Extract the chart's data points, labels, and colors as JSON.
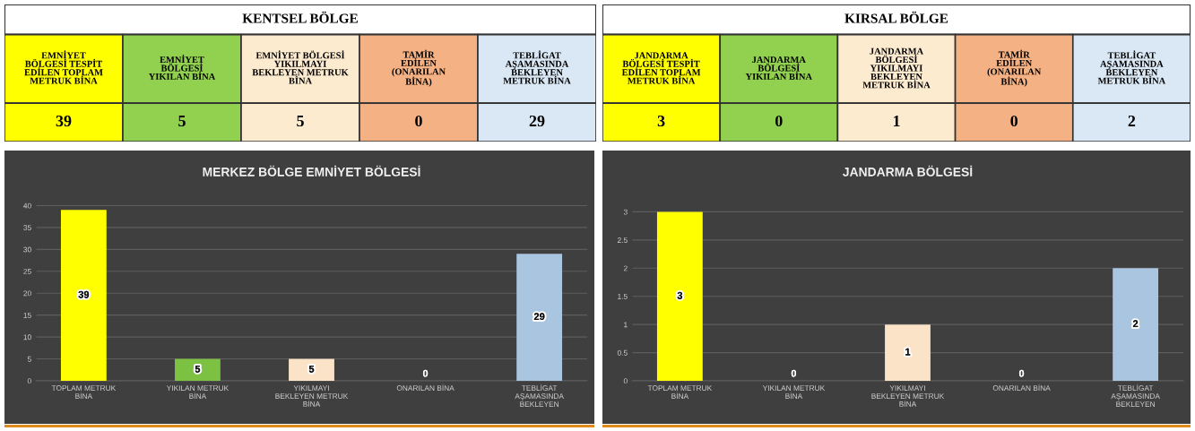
{
  "chart_data": [
    {
      "type": "other",
      "title": "KENTSEL BÖLGE",
      "categories": [
        "EMNİYET\nBÖLGESİ TESPİT\nEDİLEN TOPLAM\nMETRUK BİNA",
        "EMNİYET\nBÖLGESİ\nYIKILAN BİNA",
        "EMNİYET BÖLGESİ\nYIKILMAYI\nBEKLEYEN METRUK\nBİNA",
        "TAMİR\nEDİLEN\n(ONARILAN\nBİNA)",
        "TEBLİGAT\nAŞAMASINDA\nBEKLEYEN\nMETRUK BİNA"
      ],
      "values": [
        39,
        5,
        5,
        0,
        29
      ],
      "colors": [
        "#ffff00",
        "#92d050",
        "#fdebd0",
        "#f4b183",
        "#dae8f5"
      ],
      "data_labels": true
    },
    {
      "type": "other",
      "title": "KIRSAL BÖLGE",
      "categories": [
        "JANDARMA\nBÖLGESİ TESPİT\nEDİLEN TOPLAM\nMETRUK BİNA",
        "JANDARMA\nBÖLGESİ\nYIKILAN BİNA",
        "JANDARMA\nBÖLGESİ\nYIKILMAYI\nBEKLEYEN\nMETRUK BİNA",
        "TAMİR\nEDİLEN\n(ONARILAN\nBİNA)",
        "TEBLİGAT\nAŞAMASINDA\nBEKLEYEN\nMETRUK BİNA"
      ],
      "values": [
        3,
        0,
        1,
        0,
        2
      ],
      "colors": [
        "#ffff00",
        "#92d050",
        "#fdebd0",
        "#f4b183",
        "#dae8f5"
      ],
      "data_labels": true
    },
    {
      "type": "bar",
      "title": "MERKEZ BÖLGE EMNİYET BÖLGESİ",
      "categories": [
        "TOPLAM METRUK\nBİNA",
        "YIKILAN METRUK\nBİNA",
        "YIKILMAYI\nBEKLEYEN METRUK\nBİNA",
        "ONARILAN BİNA",
        "TEBLİGAT\nAŞAMASINDA\nBEKLEYEN"
      ],
      "values": [
        39,
        5,
        5,
        0,
        29
      ],
      "colors": [
        "#ffff00",
        "#7cc142",
        "#fbe3c8",
        "#5a3420",
        "#a9c5df"
      ],
      "ylim": [
        0,
        45
      ],
      "yticks": [
        0,
        5,
        10,
        15,
        20,
        25,
        30,
        35,
        40
      ],
      "grid": "y",
      "data_labels": true
    },
    {
      "type": "bar",
      "title": "JANDARMA BÖLGESİ",
      "categories": [
        "TOPLAM METRUK\nBİNA",
        "YIKILAN METRUK\nBİNA",
        "YIKILMAYI\nBEKLEYEN METRUK\nBİNA",
        "ONARILAN BİNA",
        "TEBLİGAT\nAŞAMASINDA\nBEKLEYEN"
      ],
      "values": [
        3,
        0,
        1,
        0,
        2
      ],
      "colors": [
        "#ffff00",
        "#2f4a1c",
        "#fbe3c8",
        "#5a3420",
        "#a9c5df"
      ],
      "ylim": [
        0,
        3.5
      ],
      "yticks": [
        0,
        0.5,
        1,
        1.5,
        2,
        2.5,
        3
      ],
      "grid": "y",
      "data_labels": true
    }
  ]
}
